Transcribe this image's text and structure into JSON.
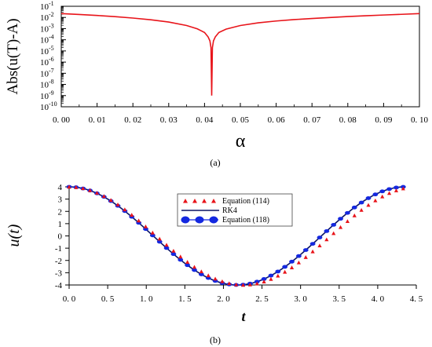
{
  "colors": {
    "red": "#e8141a",
    "blue": "#1428e0",
    "navy": "#0b1464",
    "axis": "#000000"
  },
  "chart_data": [
    {
      "panel": "(a)",
      "type": "line",
      "xlabel": "α",
      "ylabel": "Abs(u(T)-A)",
      "xlim": [
        0,
        0.1
      ],
      "ylim": [
        1e-10,
        0.1
      ],
      "yscale": "log",
      "x_tick_labels": [
        "0. 00",
        "0. 01",
        "0. 02",
        "0. 03",
        "0. 04",
        "0. 05",
        "0. 06",
        "0. 07",
        "0. 08",
        "0. 09",
        "0. 10"
      ],
      "y_tick_labels": [
        {
          "base": "10",
          "exp": "-1"
        },
        {
          "base": "10",
          "exp": "-2"
        },
        {
          "base": "10",
          "exp": "-3"
        },
        {
          "base": "10",
          "exp": "-4"
        },
        {
          "base": "10",
          "exp": "-5"
        },
        {
          "base": "10",
          "exp": "-6"
        },
        {
          "base": "10",
          "exp": "-7"
        },
        {
          "base": "10",
          "exp": "-8"
        },
        {
          "base": "10",
          "exp": "-9"
        },
        {
          "base": "10",
          "exp": "-10"
        }
      ],
      "series": [
        {
          "color": "#e8141a",
          "x": [
            0,
            0.005,
            0.01,
            0.015,
            0.02,
            0.025,
            0.03,
            0.035,
            0.038,
            0.04,
            0.041,
            0.0415,
            0.0418,
            0.042,
            0.0422,
            0.0425,
            0.043,
            0.044,
            0.046,
            0.05,
            0.055,
            0.06,
            0.065,
            0.07,
            0.075,
            0.08,
            0.085,
            0.09,
            0.095,
            0.1
          ],
          "y": [
            0.022,
            0.0185,
            0.015,
            0.0118,
            0.0088,
            0.0062,
            0.0039,
            0.0019,
            0.00095,
            0.00045,
            0.00018,
            8e-05,
            2e-05,
            1e-09,
            2e-05,
            8e-05,
            0.00018,
            0.00045,
            0.0009,
            0.0019,
            0.0033,
            0.0048,
            0.0064,
            0.0081,
            0.0099,
            0.012,
            0.0142,
            0.0165,
            0.019,
            0.022
          ]
        }
      ]
    },
    {
      "panel": "(b)",
      "type": "line",
      "xlabel": "t",
      "ylabel": "u(t)",
      "xlim": [
        0,
        4.5
      ],
      "ylim": [
        -4,
        4
      ],
      "x_tick_labels": [
        "0. 0",
        "0. 5",
        "1. 0",
        "1. 5",
        "2. 0",
        "2. 5",
        "3. 0",
        "3. 5",
        "4. 0",
        "4. 5"
      ],
      "y_tick_labels": [
        "4",
        "3",
        "2",
        "1",
        "0",
        "-1",
        "-2",
        "-3",
        "-4"
      ],
      "legend_position": "top-center",
      "series": [
        {
          "name": "Equation (114)",
          "marker": "triangle",
          "color": "#e8141a",
          "model": "u = 4 cos(π t / 2.26)",
          "x_range": [
            0,
            4.33
          ]
        },
        {
          "name": "RK4",
          "marker": "line",
          "color": "#0b1464",
          "model": "u = 4 cos(π t / 2.18)",
          "x_range": [
            0,
            4.33
          ]
        },
        {
          "name": "Equation (118)",
          "marker": "circle",
          "color": "#1428e0",
          "model": "u = 4 cos(π t / 2.18)",
          "x_range": [
            0,
            4.33
          ]
        }
      ]
    }
  ],
  "panels": {
    "a_label": "(a)",
    "b_label": "(b)"
  }
}
